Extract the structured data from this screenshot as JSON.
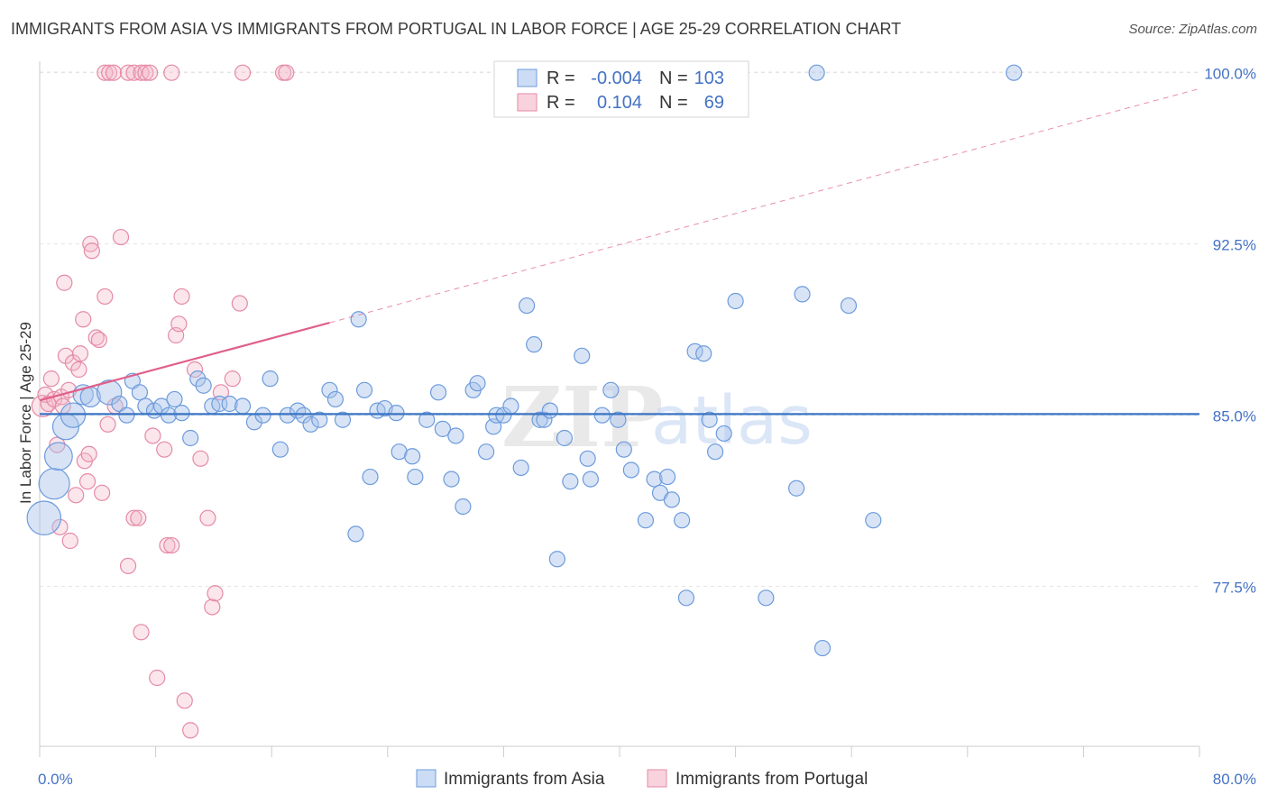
{
  "title": "IMMIGRANTS FROM ASIA VS IMMIGRANTS FROM PORTUGAL IN LABOR FORCE | AGE 25-29 CORRELATION CHART",
  "source": "Source: ZipAtlas.com",
  "watermark": {
    "part1": "ZIP",
    "part2": "atlas"
  },
  "colors": {
    "asia": "#6d9bdc",
    "portugal": "#e58aa7",
    "asia_line": "#3a75c4",
    "portugal_line": "#e0608a"
  },
  "legend": {
    "rows": [
      {
        "r_label": "R =",
        "r_value": "-0.004",
        "n_label": "N =",
        "n_value": "103"
      },
      {
        "r_label": "R =",
        "r_value": "0.104",
        "n_label": "N =",
        "n_value": "69"
      }
    ]
  },
  "bottom_legend": {
    "asia": "Immigrants from Asia",
    "portugal": "Immigrants from Portugal"
  },
  "chart_data": {
    "type": "scatter",
    "title": "IMMIGRANTS FROM ASIA VS IMMIGRANTS FROM PORTUGAL IN LABOR FORCE | AGE 25-29 CORRELATION CHART",
    "xlabel": "",
    "ylabel": "In Labor Force | Age 25-29",
    "xlim": [
      0,
      80
    ],
    "ylim": [
      70.5,
      100.5
    ],
    "x_tick_labels": [
      {
        "value": 0,
        "label": "0.0%"
      },
      {
        "value": 80,
        "label": "80.0%"
      }
    ],
    "y_tick_labels": [
      {
        "value": 77.5,
        "label": "77.5%"
      },
      {
        "value": 85.0,
        "label": "85.0%"
      },
      {
        "value": 92.5,
        "label": "92.5%"
      },
      {
        "value": 100.0,
        "label": "100.0%"
      }
    ],
    "series": [
      {
        "name": "Immigrants from Asia",
        "trend": {
          "x": [
            0,
            80
          ],
          "y": [
            85.05,
            85.05
          ]
        },
        "points": [
          [
            0.3,
            80.5,
            2.2
          ],
          [
            1.0,
            82.0,
            2.0
          ],
          [
            1.3,
            83.2,
            1.8
          ],
          [
            1.8,
            84.5,
            1.7
          ],
          [
            2.3,
            85.0,
            1.6
          ],
          [
            3.0,
            85.9,
            1.3
          ],
          [
            3.5,
            85.8,
            1.3
          ],
          [
            4.8,
            86.0,
            1.6
          ],
          [
            5.5,
            85.5,
            1.0
          ],
          [
            6.0,
            85.0,
            1.0
          ],
          [
            6.4,
            86.5,
            1.0
          ],
          [
            6.9,
            86.0,
            1.0
          ],
          [
            7.3,
            85.4,
            1.0
          ],
          [
            7.9,
            85.2,
            1.0
          ],
          [
            8.4,
            85.4,
            1.0
          ],
          [
            8.9,
            85.0,
            1.0
          ],
          [
            9.3,
            85.7,
            1.0
          ],
          [
            9.8,
            85.1,
            1.0
          ],
          [
            10.4,
            84.0,
            1.0
          ],
          [
            10.9,
            86.6,
            1.0
          ],
          [
            11.3,
            86.3,
            1.0
          ],
          [
            11.9,
            85.4,
            1.0
          ],
          [
            12.4,
            85.5,
            1.0
          ],
          [
            13.1,
            85.5,
            1.0
          ],
          [
            14.0,
            85.4,
            1.0
          ],
          [
            14.8,
            84.7,
            1.0
          ],
          [
            15.4,
            85.0,
            1.0
          ],
          [
            15.9,
            86.6,
            1.0
          ],
          [
            16.6,
            83.5,
            1.0
          ],
          [
            17.1,
            85.0,
            1.0
          ],
          [
            17.8,
            85.2,
            1.0
          ],
          [
            18.2,
            85.0,
            1.0
          ],
          [
            18.7,
            84.6,
            1.0
          ],
          [
            19.3,
            84.8,
            1.0
          ],
          [
            20.0,
            86.1,
            1.0
          ],
          [
            20.4,
            85.7,
            1.0
          ],
          [
            20.9,
            84.8,
            1.0
          ],
          [
            21.8,
            79.8,
            1.0
          ],
          [
            22.0,
            89.2,
            1.0
          ],
          [
            22.4,
            86.1,
            1.0
          ],
          [
            22.8,
            82.3,
            1.0
          ],
          [
            23.3,
            85.2,
            1.0
          ],
          [
            23.8,
            85.3,
            1.0
          ],
          [
            24.6,
            85.1,
            1.0
          ],
          [
            24.8,
            83.4,
            1.0
          ],
          [
            25.7,
            83.2,
            1.0
          ],
          [
            25.9,
            82.3,
            1.0
          ],
          [
            26.7,
            84.8,
            1.0
          ],
          [
            27.5,
            86.0,
            1.0
          ],
          [
            27.8,
            84.4,
            1.0
          ],
          [
            28.4,
            82.2,
            1.0
          ],
          [
            28.7,
            84.1,
            1.0
          ],
          [
            29.2,
            81.0,
            1.0
          ],
          [
            29.9,
            86.1,
            1.0
          ],
          [
            30.2,
            86.4,
            1.0
          ],
          [
            30.8,
            83.4,
            1.0
          ],
          [
            31.3,
            84.5,
            1.0
          ],
          [
            31.5,
            85.0,
            1.0
          ],
          [
            32.0,
            85.0,
            1.0
          ],
          [
            32.5,
            85.4,
            1.0
          ],
          [
            33.2,
            82.7,
            1.0
          ],
          [
            33.6,
            89.8,
            1.0
          ],
          [
            34.1,
            88.1,
            1.0
          ],
          [
            34.5,
            84.8,
            1.0
          ],
          [
            34.8,
            84.8,
            1.0
          ],
          [
            35.2,
            85.2,
            1.0
          ],
          [
            35.7,
            78.7,
            1.0
          ],
          [
            36.2,
            84.0,
            1.0
          ],
          [
            36.6,
            82.1,
            1.0
          ],
          [
            37.4,
            87.6,
            1.0
          ],
          [
            37.8,
            83.1,
            1.0
          ],
          [
            38.0,
            82.2,
            1.0
          ],
          [
            38.8,
            85.0,
            1.0
          ],
          [
            39.4,
            86.1,
            1.0
          ],
          [
            39.9,
            84.8,
            1.0
          ],
          [
            40.3,
            83.5,
            1.0
          ],
          [
            40.8,
            82.6,
            1.0
          ],
          [
            41.8,
            80.4,
            1.0
          ],
          [
            42.4,
            82.2,
            1.0
          ],
          [
            42.8,
            81.6,
            1.0
          ],
          [
            43.3,
            82.3,
            1.0
          ],
          [
            43.6,
            81.3,
            1.0
          ],
          [
            44.3,
            80.4,
            1.0
          ],
          [
            44.6,
            77.0,
            1.0
          ],
          [
            45.2,
            87.8,
            1.0
          ],
          [
            45.8,
            87.7,
            1.0
          ],
          [
            46.2,
            84.8,
            1.0
          ],
          [
            46.6,
            83.4,
            1.0
          ],
          [
            47.2,
            84.2,
            1.0
          ],
          [
            48.0,
            90.0,
            1.0
          ],
          [
            50.1,
            77.0,
            1.0
          ],
          [
            52.2,
            81.8,
            1.0
          ],
          [
            52.6,
            90.3,
            1.0
          ],
          [
            54.0,
            74.8,
            1.0
          ],
          [
            55.8,
            89.8,
            1.0
          ],
          [
            57.5,
            80.4,
            1.0
          ],
          [
            53.6,
            100.0,
            1.0
          ],
          [
            67.2,
            100.0,
            1.0
          ]
        ]
      },
      {
        "name": "Immigrants from Portugal",
        "trend": {
          "x": [
            0,
            20
          ],
          "y": [
            85.65,
            89.05
          ]
        },
        "trend_extension": {
          "x": [
            20,
            80
          ],
          "y": [
            89.05,
            99.3
          ]
        },
        "points": [
          [
            0.2,
            85.4,
            1.4
          ],
          [
            0.4,
            85.9,
            1.0
          ],
          [
            0.6,
            85.5,
            1.0
          ],
          [
            0.8,
            86.6,
            1.0
          ],
          [
            1.0,
            85.7,
            1.0
          ],
          [
            1.2,
            83.7,
            1.0
          ],
          [
            1.4,
            80.1,
            1.0
          ],
          [
            1.5,
            85.8,
            1.0
          ],
          [
            1.6,
            85.4,
            1.0
          ],
          [
            1.7,
            90.8,
            1.0
          ],
          [
            1.8,
            87.6,
            1.0
          ],
          [
            2.0,
            86.1,
            1.0
          ],
          [
            2.1,
            79.5,
            1.0
          ],
          [
            2.3,
            87.3,
            1.0
          ],
          [
            2.5,
            81.5,
            1.0
          ],
          [
            2.7,
            87.0,
            1.0
          ],
          [
            2.8,
            87.7,
            1.0
          ],
          [
            3.0,
            89.2,
            1.0
          ],
          [
            3.1,
            83.0,
            1.0
          ],
          [
            3.3,
            82.1,
            1.0
          ],
          [
            3.4,
            83.3,
            1.0
          ],
          [
            3.5,
            92.5,
            1.0
          ],
          [
            3.6,
            92.2,
            1.0
          ],
          [
            3.9,
            88.4,
            1.0
          ],
          [
            4.1,
            88.3,
            1.0
          ],
          [
            4.3,
            81.6,
            1.0
          ],
          [
            4.5,
            90.2,
            1.0
          ],
          [
            4.7,
            84.6,
            1.0
          ],
          [
            5.2,
            85.4,
            1.0
          ],
          [
            5.6,
            92.8,
            1.0
          ],
          [
            6.1,
            78.4,
            1.0
          ],
          [
            6.5,
            80.5,
            1.0
          ],
          [
            6.8,
            80.5,
            1.0
          ],
          [
            7.0,
            75.5,
            1.0
          ],
          [
            7.8,
            84.1,
            1.0
          ],
          [
            8.1,
            73.5,
            1.0
          ],
          [
            8.6,
            83.5,
            1.0
          ],
          [
            8.8,
            79.3,
            1.0
          ],
          [
            9.1,
            79.3,
            1.0
          ],
          [
            9.4,
            88.5,
            1.0
          ],
          [
            9.6,
            89.0,
            1.0
          ],
          [
            9.8,
            90.2,
            1.0
          ],
          [
            10.0,
            72.5,
            1.0
          ],
          [
            10.4,
            71.2,
            1.0
          ],
          [
            10.7,
            87.0,
            1.0
          ],
          [
            11.1,
            83.1,
            1.0
          ],
          [
            11.6,
            80.5,
            1.0
          ],
          [
            11.9,
            76.6,
            1.0
          ],
          [
            12.1,
            77.2,
            1.0
          ],
          [
            12.5,
            86.0,
            1.0
          ],
          [
            13.3,
            86.6,
            1.0
          ],
          [
            13.8,
            89.9,
            1.0
          ],
          [
            4.5,
            100.0,
            1.0
          ],
          [
            4.8,
            100.0,
            1.0
          ],
          [
            5.1,
            100.0,
            1.0
          ],
          [
            6.1,
            100.0,
            1.0
          ],
          [
            6.5,
            100.0,
            1.0
          ],
          [
            7.0,
            100.0,
            1.0
          ],
          [
            7.3,
            100.0,
            1.0
          ],
          [
            7.6,
            100.0,
            1.0
          ],
          [
            9.1,
            100.0,
            1.0
          ],
          [
            14.0,
            100.0,
            1.0
          ],
          [
            16.8,
            100.0,
            1.0
          ],
          [
            17.0,
            100.0,
            1.0
          ]
        ]
      }
    ]
  }
}
